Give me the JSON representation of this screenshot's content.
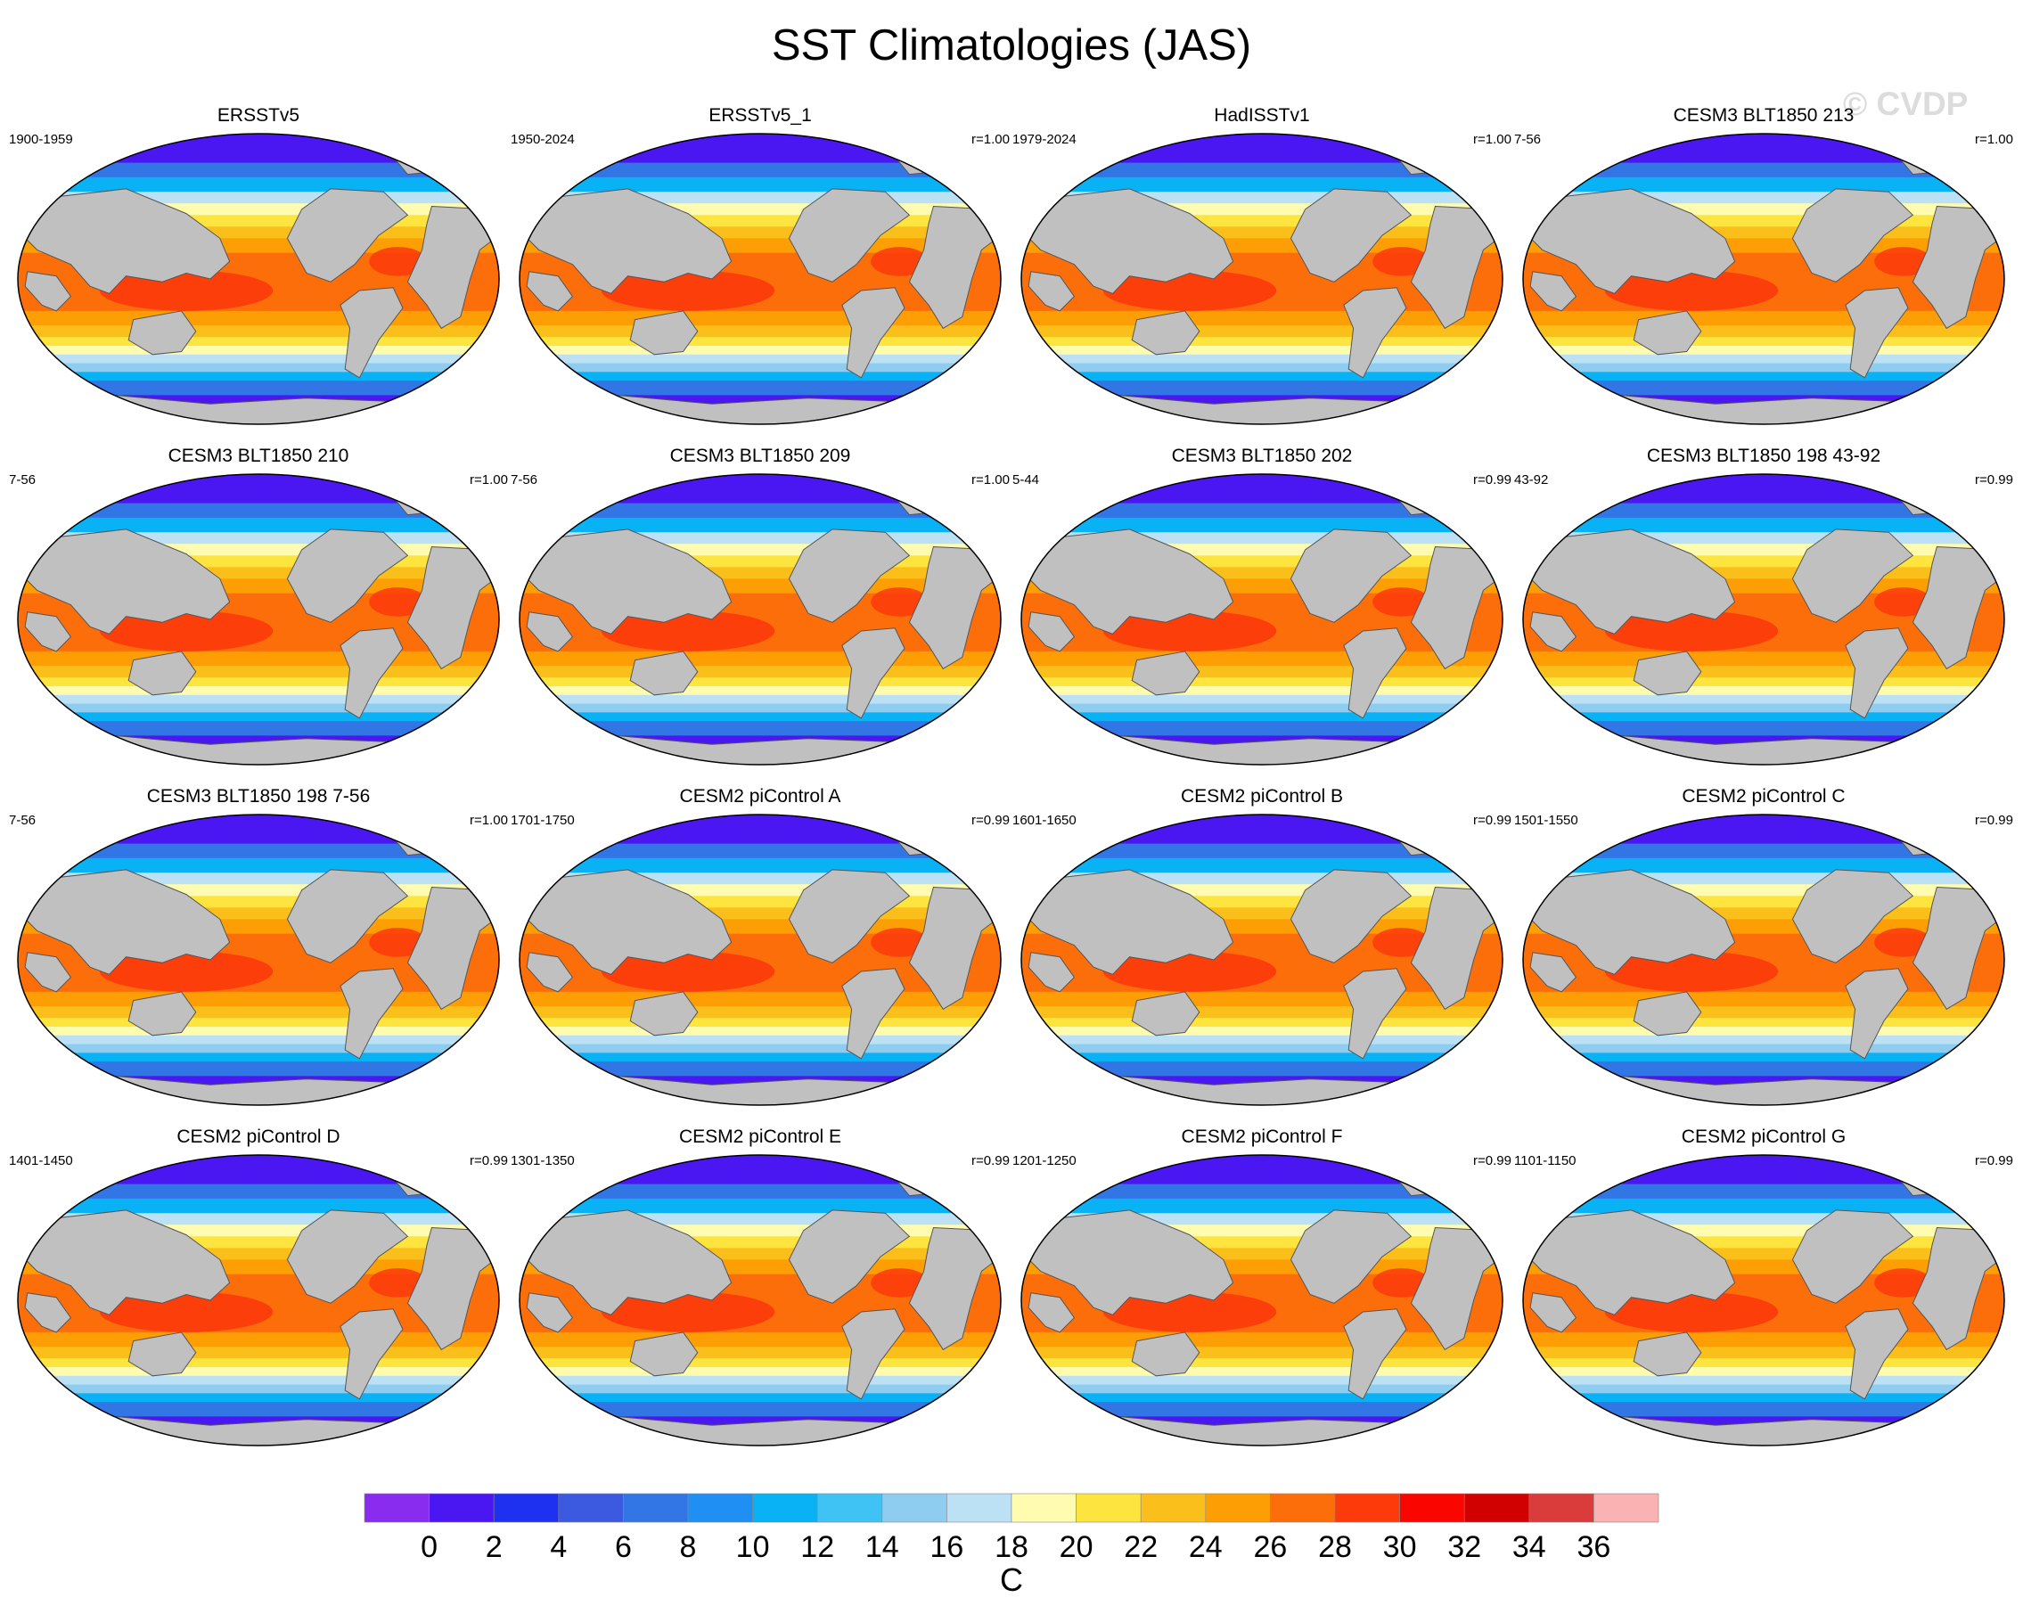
{
  "title": "SST Climatologies (JAS)",
  "watermark": "© CVDP",
  "chart_data": {
    "type": "heatmap",
    "projection": "global map (Robinson-like ellipse)",
    "season": "JAS",
    "variable": "SST",
    "land_color": "#c0c0c0",
    "panels": [
      {
        "title": "ERSSTv5",
        "period": "1900-1959",
        "r": ""
      },
      {
        "title": "ERSSTv5_1",
        "period": "1950-2024",
        "r": "r=1.00"
      },
      {
        "title": "HadISSTv1",
        "period": "1979-2024",
        "r": "r=1.00"
      },
      {
        "title": "CESM3 BLT1850 213",
        "period": "7-56",
        "r": "r=1.00"
      },
      {
        "title": "CESM3 BLT1850 210",
        "period": "7-56",
        "r": "r=1.00"
      },
      {
        "title": "CESM3 BLT1850 209",
        "period": "7-56",
        "r": "r=1.00"
      },
      {
        "title": "CESM3 BLT1850 202",
        "period": "5-44",
        "r": "r=0.99"
      },
      {
        "title": "CESM3 BLT1850 198 43-92",
        "period": "43-92",
        "r": "r=0.99"
      },
      {
        "title": "CESM3 BLT1850 198 7-56",
        "period": "7-56",
        "r": "r=1.00"
      },
      {
        "title": "CESM2 piControl A",
        "period": "1701-1750",
        "r": "r=0.99"
      },
      {
        "title": "CESM2 piControl B",
        "period": "1601-1650",
        "r": "r=0.99"
      },
      {
        "title": "CESM2 piControl C",
        "period": "1501-1550",
        "r": "r=0.99"
      },
      {
        "title": "CESM2 piControl D",
        "period": "1401-1450",
        "r": "r=0.99"
      },
      {
        "title": "CESM2 piControl E",
        "period": "1301-1350",
        "r": "r=0.99"
      },
      {
        "title": "CESM2 piControl F",
        "period": "1201-1250",
        "r": "r=0.99"
      },
      {
        "title": "CESM2 piControl G",
        "period": "1101-1150",
        "r": "r=0.99"
      }
    ],
    "colorbar": {
      "unit": "C",
      "tick_labels": [
        "0",
        "2",
        "4",
        "6",
        "8",
        "10",
        "12",
        "14",
        "16",
        "18",
        "20",
        "22",
        "24",
        "26",
        "28",
        "30",
        "32",
        "34",
        "36"
      ],
      "colors": [
        "#8a2cf0",
        "#4a16f2",
        "#1e30f0",
        "#3b5ae0",
        "#3276e6",
        "#1f8ff4",
        "#09b2f5",
        "#3fc2f4",
        "#8fcdf0",
        "#bde1f4",
        "#fffcb0",
        "#fde43e",
        "#fbbf1b",
        "#fd9e05",
        "#fc6e0a",
        "#fc3a0a",
        "#fb0500",
        "#d20101",
        "#da3b3b",
        "#fbb2b2"
      ]
    }
  }
}
